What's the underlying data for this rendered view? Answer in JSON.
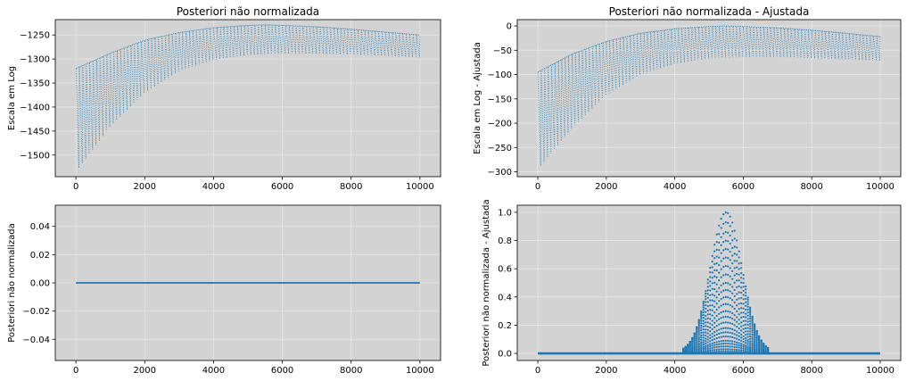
{
  "figure": {
    "background": "#ffffff",
    "axes_facecolor": "#d3d3d3",
    "grid_color": "#e6e6e6",
    "series_color": "#1f77b4"
  },
  "chart_data": [
    {
      "id": "tl",
      "type": "line",
      "line_style": "dotted",
      "title": "Posteriori não normalizada",
      "xlabel": "",
      "ylabel": "Escala em Log",
      "xlim": [
        -600,
        10600
      ],
      "ylim": [
        -1545,
        -1218
      ],
      "grid": true,
      "xticks": [
        0,
        2000,
        4000,
        6000,
        8000,
        10000
      ],
      "yticks": [
        -1500,
        -1450,
        -1400,
        -1350,
        -1300,
        -1250
      ],
      "x_range": [
        0,
        10000
      ],
      "sweeps": 100,
      "envelope": {
        "x": [
          0,
          1000,
          2000,
          3000,
          4000,
          5000,
          5500,
          6000,
          7000,
          8000,
          9000,
          10000
        ],
        "upper": [
          -1320,
          -1288,
          -1261,
          -1245,
          -1235,
          -1230,
          -1229,
          -1230,
          -1233,
          -1238,
          -1244,
          -1250
        ],
        "lower": [
          -1535,
          -1440,
          -1370,
          -1325,
          -1302,
          -1292,
          -1290,
          -1289,
          -1289,
          -1291,
          -1294,
          -1297
        ]
      }
    },
    {
      "id": "tr",
      "type": "line",
      "line_style": "dotted",
      "title": "Posteriori não normalizada - Ajustada",
      "xlabel": "",
      "ylabel": "Escala em Log - Ajustada",
      "xlim": [
        -600,
        10600
      ],
      "ylim": [
        -310,
        13
      ],
      "grid": true,
      "xticks": [
        0,
        2000,
        4000,
        6000,
        8000,
        10000
      ],
      "yticks": [
        -300,
        -250,
        -200,
        -150,
        -100,
        -50,
        0
      ],
      "x_range": [
        0,
        10000
      ],
      "sweeps": 100,
      "envelope": {
        "x": [
          0,
          1000,
          2000,
          3000,
          4000,
          5000,
          5500,
          6000,
          7000,
          8000,
          9000,
          10000
        ],
        "upper": [
          -95,
          -58,
          -32,
          -15,
          -6,
          -1,
          0,
          -1,
          -4,
          -9,
          -15,
          -22
        ],
        "lower": [
          -295,
          -210,
          -142,
          -100,
          -78,
          -67,
          -65,
          -64,
          -64,
          -66,
          -69,
          -72
        ]
      }
    },
    {
      "id": "bl",
      "type": "line",
      "line_style": "solid",
      "title": "",
      "xlabel": "",
      "ylabel": "Posteriori não normalizada",
      "xlim": [
        -600,
        10600
      ],
      "ylim": [
        -0.055,
        0.055
      ],
      "grid": true,
      "xticks": [
        0,
        2000,
        4000,
        6000,
        8000,
        10000
      ],
      "yticks": [
        -0.04,
        -0.02,
        0.0,
        0.02,
        0.04
      ],
      "ytick_labels": [
        "−0.04",
        "−0.02",
        "0.00",
        "0.02",
        "0.04"
      ],
      "x": [
        0,
        10000
      ],
      "y": [
        0,
        0
      ]
    },
    {
      "id": "br",
      "type": "scatter",
      "title": "",
      "xlabel": "",
      "ylabel": "Posteriori não normalizada - Ajustada",
      "xlim": [
        -600,
        10600
      ],
      "ylim": [
        -0.05,
        1.05
      ],
      "grid": true,
      "xticks": [
        0,
        2000,
        4000,
        6000,
        8000,
        10000
      ],
      "yticks": [
        0.0,
        0.2,
        0.4,
        0.6,
        0.8,
        1.0
      ],
      "ytick_labels": [
        "0.0",
        "0.2",
        "0.4",
        "0.6",
        "0.8",
        "1.0"
      ],
      "x_range": [
        0,
        10000
      ],
      "peak_x": 5500,
      "peak_y": 1.0,
      "peak_width": 520,
      "levels": [
        1.0,
        0.93,
        0.86,
        0.8,
        0.74,
        0.68,
        0.62,
        0.56,
        0.5,
        0.45,
        0.4,
        0.35,
        0.3,
        0.26,
        0.22,
        0.18,
        0.15,
        0.12,
        0.09,
        0.07,
        0.05,
        0.03,
        0.015
      ]
    }
  ]
}
